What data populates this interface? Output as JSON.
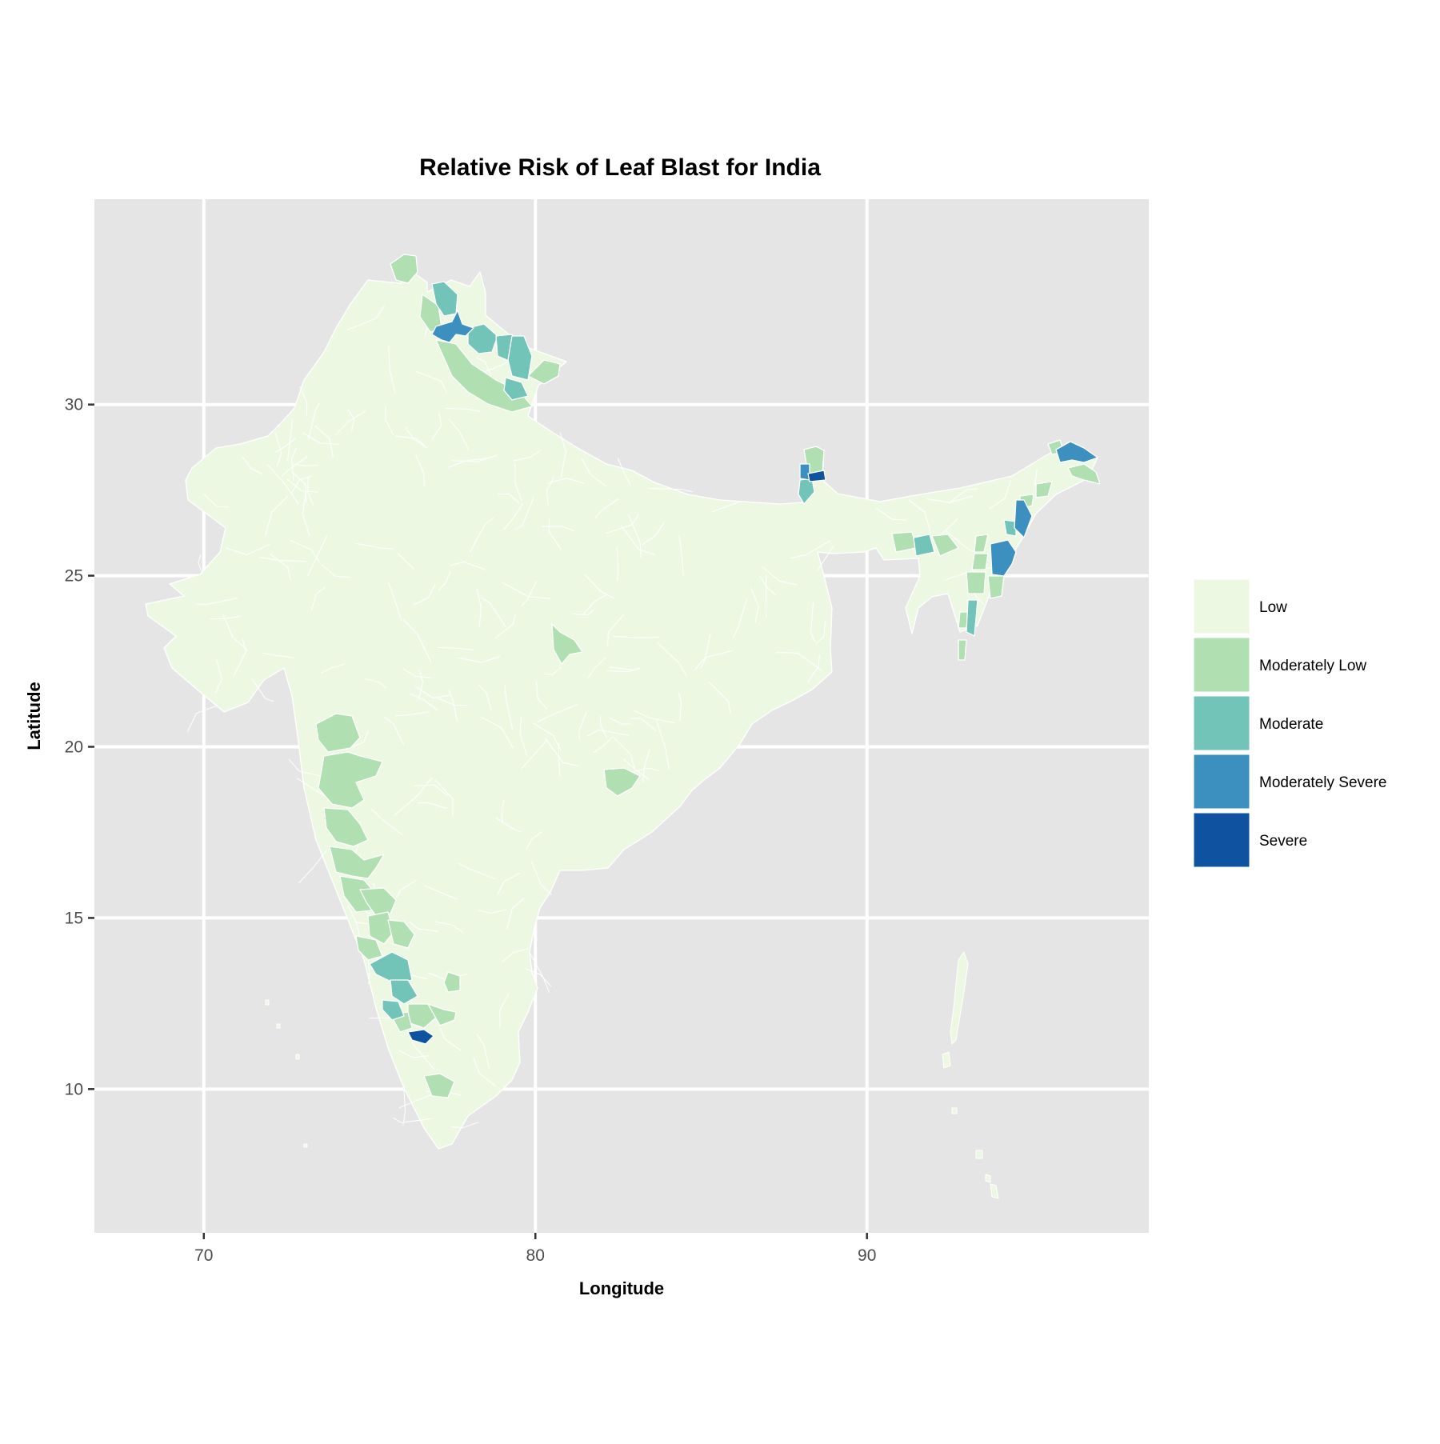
{
  "map": {
    "title": "Relative Risk of Leaf Blast for India",
    "x_axis": {
      "label": "Longitude",
      "range": [
        66.7,
        98.5
      ],
      "ticks": [
        70,
        80,
        90
      ]
    },
    "y_axis": {
      "label": "Latitude",
      "range": [
        5.8,
        36.0
      ],
      "ticks": [
        10,
        15,
        20,
        25,
        30
      ]
    },
    "panel_background": "#e5e5e5",
    "gridline_color": "#ffffff",
    "district_border_color": "#ffffff",
    "legend": {
      "placement": "right",
      "classes": [
        {
          "label": "Low",
          "color": "#edf8e3"
        },
        {
          "label": "Moderately Low",
          "color": "#b0dfb1"
        },
        {
          "label": "Moderate",
          "color": "#72c3b8"
        },
        {
          "label": "Moderately Severe",
          "color": "#3b90bf"
        },
        {
          "label": "Severe",
          "color": "#0f52a0"
        }
      ]
    }
  }
}
